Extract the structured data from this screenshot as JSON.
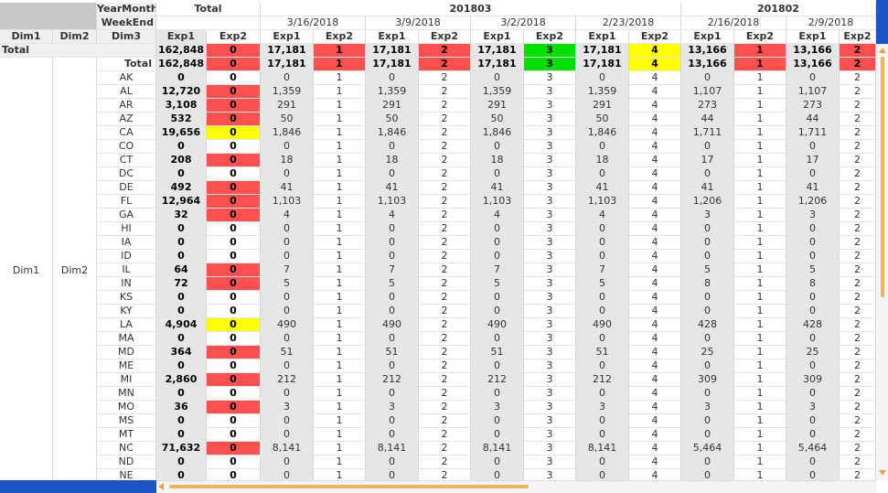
{
  "header": {
    "year_month_label": "YearMonth",
    "week_end_label": "WeekEnd",
    "total_label": "Total",
    "months": [
      "201803",
      "201802"
    ],
    "weeks": [
      "3/16/2018",
      "3/9/2018",
      "3/2/2018",
      "2/23/2018",
      "2/16/2018",
      "2/9/2018"
    ],
    "dims": [
      "Dim1",
      "Dim2",
      "Dim3"
    ],
    "measures": [
      "Exp1",
      "Exp2"
    ]
  },
  "grand_total": {
    "label": "Total",
    "cells": [
      "162,848",
      "0",
      "17,181",
      "1",
      "17,181",
      "2",
      "17,181",
      "3",
      "17,181",
      "4",
      "13,166",
      "1",
      "13,166",
      "2"
    ]
  },
  "dim1_value": "Dim1",
  "dim2_value": "Dim2",
  "subtotal": {
    "label": "Total",
    "cells": [
      "162,848",
      "0",
      "17,181",
      "1",
      "17,181",
      "2",
      "17,181",
      "3",
      "17,181",
      "4",
      "13,166",
      "1",
      "13,166",
      "2"
    ]
  },
  "week_exp2_colors": [
    "#ff5050",
    "#ff5050",
    "#00e000",
    "#ffff00",
    "#ff5050",
    "#ff5050"
  ],
  "total_exp2_color": "#ff5050",
  "rows": [
    [
      "AK",
      "0",
      "0",
      "0",
      "1",
      "0",
      "2",
      "0",
      "3",
      "0",
      "4",
      "0",
      "1",
      "0",
      "2"
    ],
    [
      "AL",
      "12,720",
      "0",
      "1,359",
      "1",
      "1,359",
      "2",
      "1,359",
      "3",
      "1,359",
      "4",
      "1,107",
      "1",
      "1,107",
      "2"
    ],
    [
      "AR",
      "3,108",
      "0",
      "291",
      "1",
      "291",
      "2",
      "291",
      "3",
      "291",
      "4",
      "273",
      "1",
      "273",
      "2"
    ],
    [
      "AZ",
      "532",
      "0",
      "50",
      "1",
      "50",
      "2",
      "50",
      "3",
      "50",
      "4",
      "44",
      "1",
      "44",
      "2"
    ],
    [
      "CA",
      "19,656",
      "0",
      "1,846",
      "1",
      "1,846",
      "2",
      "1,846",
      "3",
      "1,846",
      "4",
      "1,711",
      "1",
      "1,711",
      "2"
    ],
    [
      "CO",
      "0",
      "0",
      "0",
      "1",
      "0",
      "2",
      "0",
      "3",
      "0",
      "4",
      "0",
      "1",
      "0",
      "2"
    ],
    [
      "CT",
      "208",
      "0",
      "18",
      "1",
      "18",
      "2",
      "18",
      "3",
      "18",
      "4",
      "17",
      "1",
      "17",
      "2"
    ],
    [
      "DC",
      "0",
      "0",
      "0",
      "1",
      "0",
      "2",
      "0",
      "3",
      "0",
      "4",
      "0",
      "1",
      "0",
      "2"
    ],
    [
      "DE",
      "492",
      "0",
      "41",
      "1",
      "41",
      "2",
      "41",
      "3",
      "41",
      "4",
      "41",
      "1",
      "41",
      "2"
    ],
    [
      "FL",
      "12,964",
      "0",
      "1,103",
      "1",
      "1,103",
      "2",
      "1,103",
      "3",
      "1,103",
      "4",
      "1,206",
      "1",
      "1,206",
      "2"
    ],
    [
      "GA",
      "32",
      "0",
      "4",
      "1",
      "4",
      "2",
      "4",
      "3",
      "4",
      "4",
      "3",
      "1",
      "3",
      "2"
    ],
    [
      "HI",
      "0",
      "0",
      "0",
      "1",
      "0",
      "2",
      "0",
      "3",
      "0",
      "4",
      "0",
      "1",
      "0",
      "2"
    ],
    [
      "IA",
      "0",
      "0",
      "0",
      "1",
      "0",
      "2",
      "0",
      "3",
      "0",
      "4",
      "0",
      "1",
      "0",
      "2"
    ],
    [
      "ID",
      "0",
      "0",
      "0",
      "1",
      "0",
      "2",
      "0",
      "3",
      "0",
      "4",
      "0",
      "1",
      "0",
      "2"
    ],
    [
      "IL",
      "64",
      "0",
      "7",
      "1",
      "7",
      "2",
      "7",
      "3",
      "7",
      "4",
      "5",
      "1",
      "5",
      "2"
    ],
    [
      "IN",
      "72",
      "0",
      "5",
      "1",
      "5",
      "2",
      "5",
      "3",
      "5",
      "4",
      "8",
      "1",
      "8",
      "2"
    ],
    [
      "KS",
      "0",
      "0",
      "0",
      "1",
      "0",
      "2",
      "0",
      "3",
      "0",
      "4",
      "0",
      "1",
      "0",
      "2"
    ],
    [
      "KY",
      "0",
      "0",
      "0",
      "1",
      "0",
      "2",
      "0",
      "3",
      "0",
      "4",
      "0",
      "1",
      "0",
      "2"
    ],
    [
      "LA",
      "4,904",
      "0",
      "490",
      "1",
      "490",
      "2",
      "490",
      "3",
      "490",
      "4",
      "428",
      "1",
      "428",
      "2"
    ],
    [
      "MA",
      "0",
      "0",
      "0",
      "1",
      "0",
      "2",
      "0",
      "3",
      "0",
      "4",
      "0",
      "1",
      "0",
      "2"
    ],
    [
      "MD",
      "364",
      "0",
      "51",
      "1",
      "51",
      "2",
      "51",
      "3",
      "51",
      "4",
      "25",
      "1",
      "25",
      "2"
    ],
    [
      "ME",
      "0",
      "0",
      "0",
      "1",
      "0",
      "2",
      "0",
      "3",
      "0",
      "4",
      "0",
      "1",
      "0",
      "2"
    ],
    [
      "MI",
      "2,860",
      "0",
      "212",
      "1",
      "212",
      "2",
      "212",
      "3",
      "212",
      "4",
      "309",
      "1",
      "309",
      "2"
    ],
    [
      "MN",
      "0",
      "0",
      "0",
      "1",
      "0",
      "2",
      "0",
      "3",
      "0",
      "4",
      "0",
      "1",
      "0",
      "2"
    ],
    [
      "MO",
      "36",
      "0",
      "3",
      "1",
      "3",
      "2",
      "3",
      "3",
      "3",
      "4",
      "3",
      "1",
      "3",
      "2"
    ],
    [
      "MS",
      "0",
      "0",
      "0",
      "1",
      "0",
      "2",
      "0",
      "3",
      "0",
      "4",
      "0",
      "1",
      "0",
      "2"
    ],
    [
      "MT",
      "0",
      "0",
      "0",
      "1",
      "0",
      "2",
      "0",
      "3",
      "0",
      "4",
      "0",
      "1",
      "0",
      "2"
    ],
    [
      "NC",
      "71,632",
      "0",
      "8,141",
      "1",
      "8,141",
      "2",
      "8,141",
      "3",
      "8,141",
      "4",
      "5,464",
      "1",
      "5,464",
      "2"
    ],
    [
      "ND",
      "0",
      "0",
      "0",
      "1",
      "0",
      "2",
      "0",
      "3",
      "0",
      "4",
      "0",
      "1",
      "0",
      "2"
    ],
    [
      "NE",
      "0",
      "0",
      "0",
      "1",
      "0",
      "2",
      "0",
      "3",
      "0",
      "4",
      "0",
      "1",
      "0",
      "2"
    ]
  ],
  "row_exp2_colors": [
    "#ffffff",
    "#ff5050",
    "#ff5050",
    "#ff5050",
    "#ffff00",
    "#ffffff",
    "#ff5050",
    "#ffffff",
    "#ff5050",
    "#ff5050",
    "#ff5050",
    "#ffffff",
    "#ffffff",
    "#ffffff",
    "#ff5050",
    "#ff5050",
    "#ffffff",
    "#ffffff",
    "#ffff00",
    "#ffffff",
    "#ff5050",
    "#ffffff",
    "#ff5050",
    "#ffffff",
    "#ff5050",
    "#ffffff",
    "#ffffff",
    "#ff5050",
    "#ffffff",
    "#ffffff"
  ]
}
